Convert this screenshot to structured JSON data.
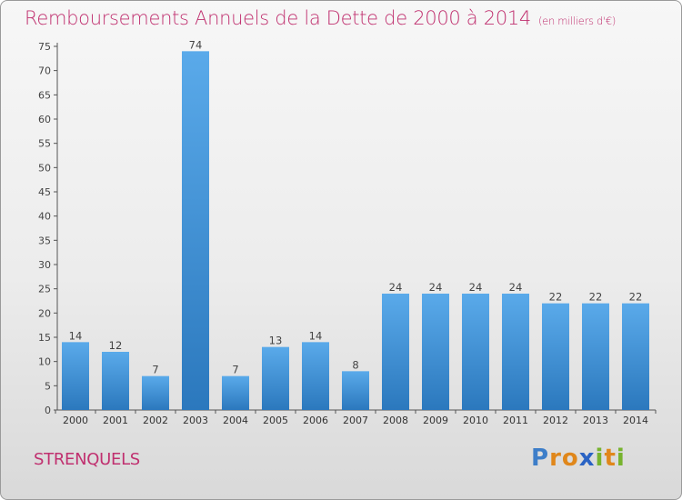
{
  "header": {
    "title": "Remboursements Annuels de la Dette de 2000 à 2014",
    "unit": "(en milliers d'€)"
  },
  "footer": {
    "city": "STRENQUELS",
    "logo": "Proxiti"
  },
  "colors": {
    "title": "#c0306f",
    "bar_light": "#5aaaea",
    "bar_dark": "#2b78bd",
    "logo_letters": [
      "#3d7ec9",
      "#e0871b",
      "#e0871b",
      "#2a63c4",
      "#77b32e",
      "#e0871b",
      "#77b32e"
    ]
  },
  "chart_data": {
    "type": "bar",
    "title": "Remboursements Annuels de la Dette de 2000 à 2014",
    "categories": [
      "2000",
      "2001",
      "2002",
      "2003",
      "2004",
      "2005",
      "2006",
      "2007",
      "2008",
      "2009",
      "2010",
      "2011",
      "2012",
      "2013",
      "2014"
    ],
    "values": [
      14,
      12,
      7,
      74,
      7,
      13,
      14,
      8,
      24,
      24,
      24,
      24,
      22,
      22,
      22
    ],
    "ylim": [
      0,
      75
    ],
    "yticks": [
      0,
      5,
      10,
      15,
      20,
      25,
      30,
      35,
      40,
      45,
      50,
      55,
      60,
      65,
      70,
      75
    ],
    "grid": false,
    "data_labels": true
  }
}
